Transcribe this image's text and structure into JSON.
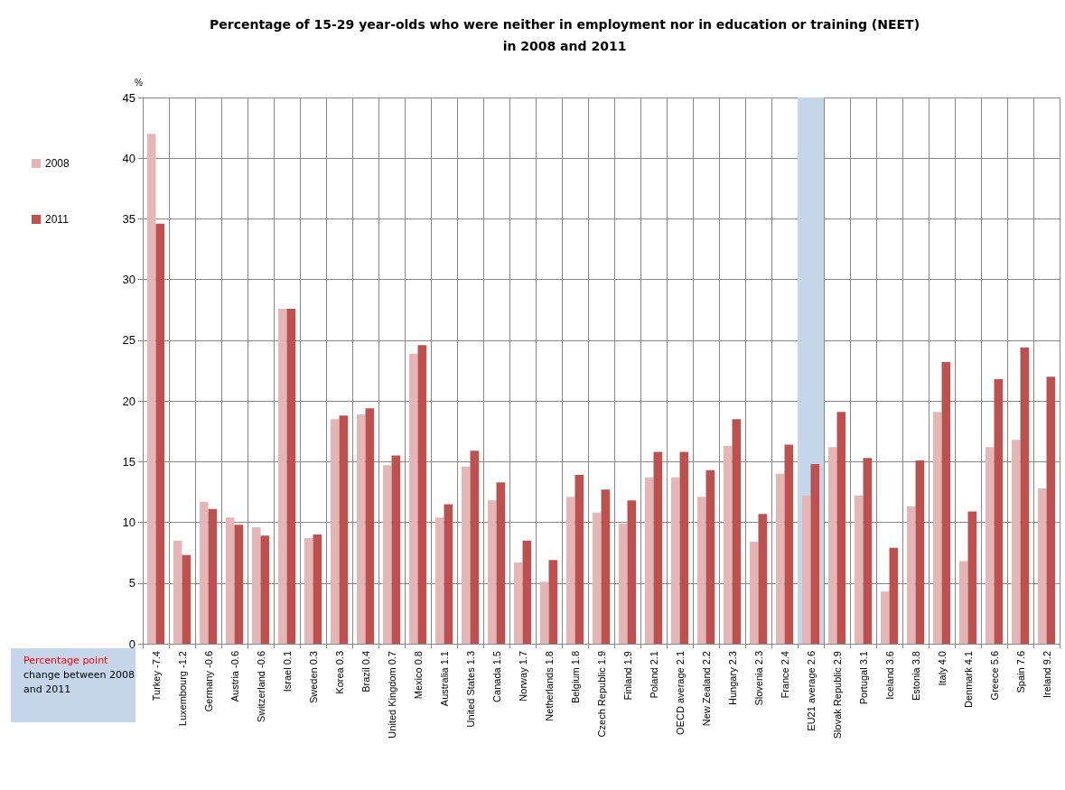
{
  "chart_data": {
    "type": "bar",
    "title": "Percentage of 15-29 year-olds who were neither in employment nor in education or training (NEET)\nin 2008 and 2011",
    "ylabel": "%",
    "categories": [
      "Turkey -7.4",
      "Luxembourg -1.2",
      "Germany -0.6",
      "Austria -0.6",
      "Switzerland -0.6",
      "Israel 0.1",
      "Sweden 0.3",
      "Korea 0.3",
      "Brazil 0.4",
      "United Kingdom 0.7",
      "Mexico 0.8",
      "Australia 1.1",
      "United States 1.3",
      "Canada 1.5",
      "Norway 1.7",
      "Netherlands 1.8",
      "Belgium 1.8",
      "Czech Republic 1.9",
      "Finland 1.9",
      "Poland 2.1",
      "OECD average 2.1",
      "New Zealand 2.2",
      "Hungary 2.3",
      "Slovenia 2.3",
      "France 2.4",
      "EU21 average 2.6",
      "Slovak Republic 2.9",
      "Portugal 3.1",
      "Iceland 3.6",
      "Estonia 3.8",
      "Italy 4.0",
      "Denmark 4.1",
      "Greece 5.6",
      "Spain 7.6",
      "Ireland 9.2"
    ],
    "series": [
      {
        "name": "2008",
        "color": "#e6b5b5",
        "values": [
          42.0,
          8.5,
          11.7,
          10.4,
          9.6,
          27.6,
          8.7,
          18.5,
          18.9,
          14.7,
          23.9,
          10.4,
          14.6,
          11.8,
          6.7,
          5.1,
          12.1,
          10.8,
          9.9,
          13.7,
          13.7,
          12.1,
          16.3,
          8.4,
          14.0,
          12.2,
          16.2,
          12.2,
          4.3,
          11.3,
          19.1,
          6.8,
          16.2,
          16.8,
          12.8
        ]
      },
      {
        "name": "2011",
        "color": "#c0504d",
        "values": [
          34.6,
          7.3,
          11.1,
          9.8,
          8.9,
          27.6,
          9.0,
          18.8,
          19.4,
          15.5,
          24.6,
          11.5,
          15.9,
          13.3,
          8.5,
          6.9,
          13.9,
          12.7,
          11.8,
          15.8,
          15.8,
          14.3,
          18.5,
          10.7,
          16.4,
          14.8,
          19.1,
          15.3,
          7.9,
          15.1,
          23.2,
          10.9,
          21.8,
          24.4,
          22.0
        ]
      }
    ],
    "ylim": [
      0,
      45
    ],
    "yticks": [
      0,
      5,
      10,
      15,
      20,
      25,
      30,
      35,
      40,
      45
    ],
    "grid": true,
    "legend": "left",
    "bands": [
      {
        "axis": "x",
        "from": "EU21 average 2.6",
        "to": "EU21 average 2.6",
        "color": "#c5d5ea"
      }
    ],
    "annotations": [
      "Percentage point",
      "change between 2008 and 2011"
    ]
  }
}
